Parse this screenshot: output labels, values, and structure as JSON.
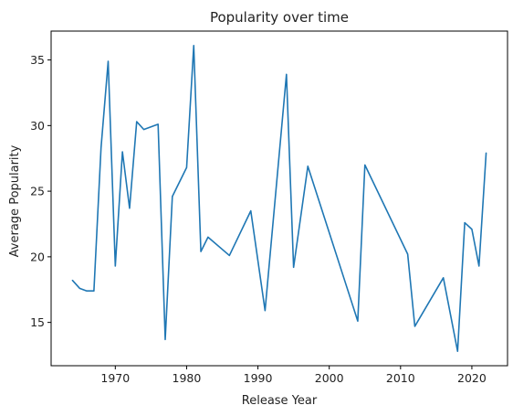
{
  "chart_data": {
    "type": "line",
    "title": "Popularity over time",
    "xlabel": "Release Year",
    "ylabel": "Average Popularity",
    "xlim": [
      1961,
      2025
    ],
    "ylim": [
      11.7,
      37.2
    ],
    "xticks": [
      1970,
      1980,
      1990,
      2000,
      2010,
      2020
    ],
    "yticks": [
      15,
      20,
      25,
      30,
      35
    ],
    "grid": false,
    "color": "#1f77b4",
    "series": [
      {
        "x": [
          1964,
          1965,
          1966,
          1967,
          1968,
          1969,
          1970,
          1971,
          1972,
          1973,
          1974,
          1976,
          1977,
          1978,
          1980,
          1981,
          1982,
          1983,
          1986,
          1989,
          1991,
          1994,
          1995,
          1997,
          2004,
          2005,
          2011,
          2012,
          2016,
          2018,
          2019,
          2020,
          2021,
          2022
        ],
        "y": [
          18.2,
          17.6,
          17.4,
          17.4,
          28.3,
          34.9,
          19.3,
          28.0,
          23.7,
          30.3,
          29.7,
          30.1,
          13.7,
          24.6,
          26.8,
          36.1,
          20.4,
          21.5,
          20.1,
          23.5,
          15.9,
          33.9,
          19.2,
          26.9,
          15.1,
          27.0,
          20.2,
          14.7,
          18.4,
          12.8,
          22.6,
          22.1,
          19.3,
          27.9
        ]
      }
    ]
  }
}
